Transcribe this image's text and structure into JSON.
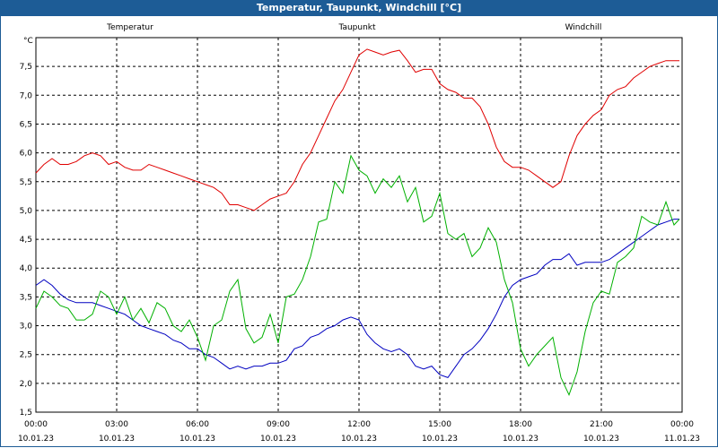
{
  "window": {
    "title": "Temperatur, Taupunkt, Windchill [°C]"
  },
  "chart_data": {
    "type": "line",
    "title": "Temperatur, Taupunkt, Windchill [°C]",
    "ylabel": "°C",
    "ylim": [
      1.5,
      8.0
    ],
    "yticks": [
      "1,5",
      "2,0",
      "2,5",
      "3,0",
      "3,5",
      "4,0",
      "4,5",
      "5,0",
      "5,5",
      "6,0",
      "6,5",
      "7,0",
      "7,5"
    ],
    "xlim": [
      0,
      24
    ],
    "xticks": [
      {
        "time": "00:00",
        "date": "10.01.23"
      },
      {
        "time": "03:00",
        "date": "10.01.23"
      },
      {
        "time": "06:00",
        "date": "10.01.23"
      },
      {
        "time": "09:00",
        "date": "10.01.23"
      },
      {
        "time": "12:00",
        "date": "10.01.23"
      },
      {
        "time": "15:00",
        "date": "10.01.23"
      },
      {
        "time": "18:00",
        "date": "10.01.23"
      },
      {
        "time": "21:00",
        "date": "10.01.23"
      },
      {
        "time": "00:00",
        "date": "11.01.23"
      }
    ],
    "grid": true,
    "series": [
      {
        "name": "Temperatur",
        "color": "#e00000",
        "x": [
          0,
          0.3,
          0.6,
          0.9,
          1.2,
          1.5,
          1.8,
          2.1,
          2.4,
          2.7,
          3.0,
          3.3,
          3.6,
          3.9,
          4.2,
          4.5,
          4.8,
          5.1,
          5.4,
          5.7,
          6.0,
          6.3,
          6.6,
          6.9,
          7.2,
          7.5,
          7.8,
          8.1,
          8.4,
          8.7,
          9.0,
          9.3,
          9.6,
          9.9,
          10.2,
          10.5,
          10.8,
          11.1,
          11.4,
          11.7,
          12.0,
          12.3,
          12.6,
          12.9,
          13.2,
          13.5,
          13.8,
          14.1,
          14.4,
          14.7,
          15.0,
          15.3,
          15.6,
          15.9,
          16.2,
          16.5,
          16.8,
          17.1,
          17.4,
          17.7,
          18.0,
          18.3,
          18.6,
          18.9,
          19.2,
          19.5,
          19.8,
          20.1,
          20.4,
          20.7,
          21.0,
          21.3,
          21.6,
          21.9,
          22.2,
          22.5,
          22.8,
          23.1,
          23.4,
          23.7,
          23.9
        ],
        "values": [
          5.65,
          5.8,
          5.9,
          5.8,
          5.8,
          5.85,
          5.95,
          6.0,
          5.95,
          5.8,
          5.85,
          5.75,
          5.7,
          5.7,
          5.8,
          5.75,
          5.7,
          5.65,
          5.6,
          5.55,
          5.5,
          5.45,
          5.4,
          5.3,
          5.1,
          5.1,
          5.05,
          5.0,
          5.1,
          5.2,
          5.25,
          5.3,
          5.5,
          5.8,
          6.0,
          6.3,
          6.6,
          6.9,
          7.1,
          7.4,
          7.7,
          7.8,
          7.75,
          7.7,
          7.75,
          7.78,
          7.6,
          7.4,
          7.45,
          7.45,
          7.2,
          7.1,
          7.05,
          6.95,
          6.95,
          6.8,
          6.5,
          6.1,
          5.85,
          5.75,
          5.75,
          5.7,
          5.6,
          5.5,
          5.4,
          5.5,
          5.95,
          6.3,
          6.5,
          6.65,
          6.75,
          7.0,
          7.1,
          7.15,
          7.3,
          7.4,
          7.5,
          7.55,
          7.6,
          7.6,
          7.6
        ]
      },
      {
        "name": "Taupunkt",
        "color": "#0000c0",
        "x": [
          0,
          0.3,
          0.6,
          0.9,
          1.2,
          1.5,
          1.8,
          2.1,
          2.4,
          2.7,
          3.0,
          3.3,
          3.6,
          3.9,
          4.2,
          4.5,
          4.8,
          5.1,
          5.4,
          5.7,
          6.0,
          6.3,
          6.6,
          6.9,
          7.2,
          7.5,
          7.8,
          8.1,
          8.4,
          8.7,
          9.0,
          9.3,
          9.6,
          9.9,
          10.2,
          10.5,
          10.8,
          11.1,
          11.4,
          11.7,
          12.0,
          12.3,
          12.6,
          12.9,
          13.2,
          13.5,
          13.8,
          14.1,
          14.4,
          14.7,
          15.0,
          15.3,
          15.6,
          15.9,
          16.2,
          16.5,
          16.8,
          17.1,
          17.4,
          17.7,
          18.0,
          18.3,
          18.6,
          18.9,
          19.2,
          19.5,
          19.8,
          20.1,
          20.4,
          20.7,
          21.0,
          21.3,
          21.6,
          21.9,
          22.2,
          22.5,
          22.8,
          23.1,
          23.4,
          23.7,
          23.9
        ],
        "values": [
          3.7,
          3.8,
          3.7,
          3.55,
          3.45,
          3.4,
          3.4,
          3.4,
          3.35,
          3.3,
          3.25,
          3.2,
          3.1,
          3.0,
          2.95,
          2.9,
          2.85,
          2.75,
          2.7,
          2.6,
          2.6,
          2.5,
          2.45,
          2.35,
          2.25,
          2.3,
          2.25,
          2.3,
          2.3,
          2.35,
          2.35,
          2.4,
          2.6,
          2.65,
          2.8,
          2.85,
          2.95,
          3.0,
          3.1,
          3.15,
          3.1,
          2.85,
          2.7,
          2.6,
          2.55,
          2.6,
          2.5,
          2.3,
          2.25,
          2.3,
          2.15,
          2.1,
          2.3,
          2.5,
          2.6,
          2.75,
          2.95,
          3.2,
          3.5,
          3.7,
          3.8,
          3.85,
          3.9,
          4.05,
          4.15,
          4.15,
          4.25,
          4.05,
          4.1,
          4.1,
          4.1,
          4.15,
          4.25,
          4.35,
          4.45,
          4.55,
          4.65,
          4.75,
          4.8,
          4.85,
          4.85
        ]
      },
      {
        "name": "Windchill",
        "color": "#00b000",
        "x": [
          0,
          0.3,
          0.6,
          0.9,
          1.2,
          1.5,
          1.8,
          2.1,
          2.4,
          2.7,
          3.0,
          3.3,
          3.6,
          3.9,
          4.2,
          4.5,
          4.8,
          5.1,
          5.4,
          5.7,
          6.0,
          6.3,
          6.6,
          6.9,
          7.2,
          7.5,
          7.8,
          8.1,
          8.4,
          8.7,
          9.0,
          9.3,
          9.6,
          9.9,
          10.2,
          10.5,
          10.8,
          11.1,
          11.4,
          11.7,
          12.0,
          12.3,
          12.6,
          12.9,
          13.2,
          13.5,
          13.8,
          14.1,
          14.4,
          14.7,
          15.0,
          15.3,
          15.6,
          15.9,
          16.2,
          16.5,
          16.8,
          17.1,
          17.4,
          17.7,
          18.0,
          18.3,
          18.6,
          18.9,
          19.2,
          19.5,
          19.8,
          20.1,
          20.4,
          20.7,
          21.0,
          21.3,
          21.6,
          21.9,
          22.2,
          22.5,
          22.8,
          23.1,
          23.4,
          23.7,
          23.9
        ],
        "values": [
          3.3,
          3.6,
          3.5,
          3.35,
          3.3,
          3.1,
          3.1,
          3.2,
          3.6,
          3.5,
          3.2,
          3.5,
          3.1,
          3.3,
          3.05,
          3.4,
          3.3,
          3.0,
          2.9,
          3.1,
          2.8,
          2.4,
          3.0,
          3.1,
          3.6,
          3.8,
          2.95,
          2.7,
          2.8,
          3.2,
          2.7,
          3.5,
          3.55,
          3.8,
          4.2,
          4.8,
          4.85,
          5.5,
          5.3,
          5.95,
          5.7,
          5.6,
          5.3,
          5.55,
          5.4,
          5.6,
          5.15,
          5.4,
          4.8,
          4.9,
          5.3,
          4.6,
          4.5,
          4.6,
          4.2,
          4.35,
          4.7,
          4.45,
          3.8,
          3.4,
          2.6,
          2.3,
          2.5,
          2.65,
          2.8,
          2.1,
          1.8,
          2.2,
          2.9,
          3.4,
          3.6,
          3.55,
          4.1,
          4.2,
          4.35,
          4.9,
          4.8,
          4.75,
          5.15,
          4.75,
          4.85
        ]
      }
    ]
  }
}
